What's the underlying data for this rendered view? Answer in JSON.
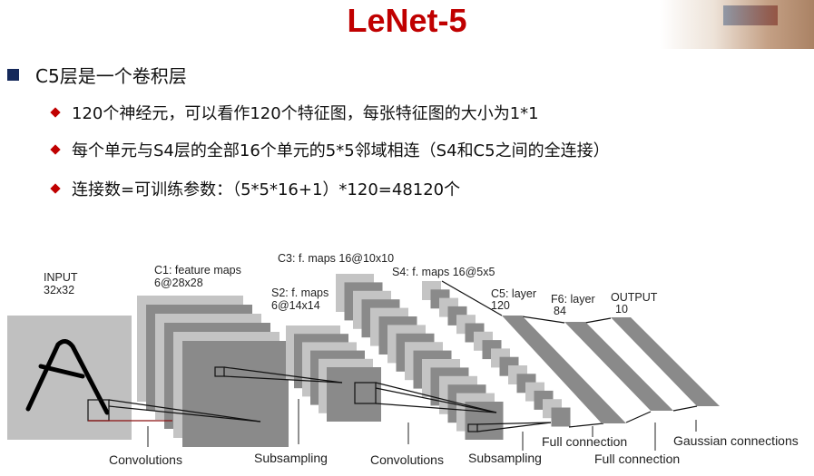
{
  "title": "LeNet-5",
  "bullet_main": "C5层是一个卷积层",
  "sub_bullets": [
    "120个神经元，可以看作120个特征图，每张特征图的大小为1*1",
    "每个单元与S4层的全部16个单元的5*5邻域相连（S4和C5之间的全连接）",
    "连接数=可训练参数：（5*5*16+1）*120=48120个"
  ],
  "colors": {
    "title": "#c00000",
    "main_bullet": "#14285a",
    "sub_bullet": "#c00000",
    "map_light": "#c4c4c4",
    "map_dark": "#8a8a8a"
  },
  "diagram": {
    "layers": {
      "input": [
        "INPUT",
        "32x32"
      ],
      "c1": [
        "C1: feature maps",
        "6@28x28"
      ],
      "s2": [
        "S2: f. maps",
        "6@14x14"
      ],
      "c3": [
        "C3: f. maps 16@10x10"
      ],
      "s4": [
        "S4: f. maps 16@5x5"
      ],
      "c5": [
        "C5: layer",
        "120"
      ],
      "f6": [
        "F6: layer",
        "84"
      ],
      "output": [
        "OUTPUT",
        "10"
      ]
    },
    "operations": [
      "Convolutions",
      "Subsampling",
      "Convolutions",
      "Subsampling",
      "Full connection",
      "Full connection",
      "Gaussian connections"
    ]
  }
}
